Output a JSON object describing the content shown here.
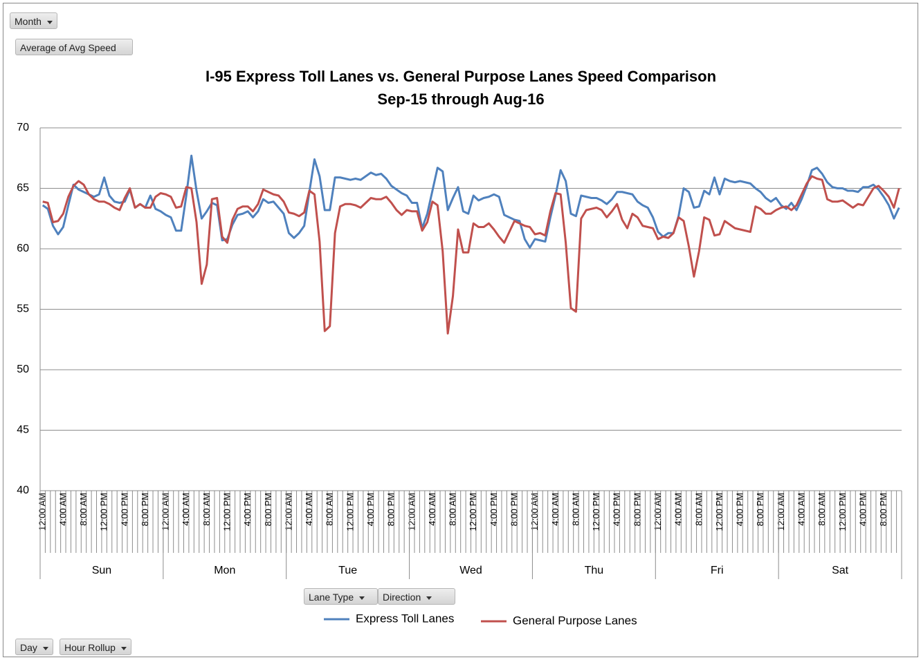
{
  "chart_data": {
    "type": "line",
    "title": "I-95 Express Toll Lanes vs. General Purpose Lanes Speed Comparison",
    "subtitle": "Sep-15 through Aug-16",
    "field_buttons": {
      "report_filter": "Month",
      "values": "Average of Avg Speed",
      "legend_fields": [
        "Lane Type",
        "Direction"
      ],
      "axis_fields": [
        "Day",
        "Hour Rollup"
      ]
    },
    "day_groups": [
      "Sun",
      "Mon",
      "Tue",
      "Wed",
      "Thu",
      "Fri",
      "Sat"
    ],
    "categories": [
      "12:00 AM",
      null,
      null,
      null,
      "4:00 AM",
      null,
      null,
      null,
      "8:00 AM",
      null,
      null,
      null,
      "12:00 PM",
      null,
      null,
      null,
      "4:00 PM",
      null,
      null,
      null,
      "8:00 PM",
      null,
      null,
      null,
      "12:00 AM",
      null,
      null,
      null,
      "4:00 AM",
      null,
      null,
      null,
      "8:00 AM",
      null,
      null,
      null,
      "12:00 PM",
      null,
      null,
      null,
      "4:00 PM",
      null,
      null,
      null,
      "8:00 PM",
      null,
      null,
      null,
      "12:00 AM",
      null,
      null,
      null,
      "4:00 AM",
      null,
      null,
      null,
      "8:00 AM",
      null,
      null,
      null,
      "12:00 PM",
      null,
      null,
      null,
      "4:00 PM",
      null,
      null,
      null,
      "8:00 PM",
      null,
      null,
      null,
      "12:00 AM",
      null,
      null,
      null,
      "4:00 AM",
      null,
      null,
      null,
      "8:00 AM",
      null,
      null,
      null,
      "12:00 PM",
      null,
      null,
      null,
      "4:00 PM",
      null,
      null,
      null,
      "8:00 PM",
      null,
      null,
      null,
      "12:00 AM",
      null,
      null,
      null,
      "4:00 AM",
      null,
      null,
      null,
      "8:00 AM",
      null,
      null,
      null,
      "12:00 PM",
      null,
      null,
      null,
      "4:00 PM",
      null,
      null,
      null,
      "8:00 PM",
      null,
      null,
      null,
      "12:00 AM",
      null,
      null,
      null,
      "4:00 AM",
      null,
      null,
      null,
      "8:00 AM",
      null,
      null,
      null,
      "12:00 PM",
      null,
      null,
      null,
      "4:00 PM",
      null,
      null,
      null,
      "8:00 PM",
      null,
      null,
      null,
      "12:00 AM",
      null,
      null,
      null,
      "4:00 AM",
      null,
      null,
      null,
      "8:00 AM",
      null,
      null,
      null,
      "12:00 PM",
      null,
      null,
      null,
      "4:00 PM",
      null,
      null,
      null,
      "8:00 PM",
      null,
      null,
      null
    ],
    "series": [
      {
        "name": "Express Toll Lanes",
        "color": "#4f81bd",
        "values": [
          63.6,
          63.3,
          61.9,
          61.2,
          61.8,
          63.6,
          65.3,
          64.9,
          64.7,
          64.5,
          64.3,
          64.5,
          65.9,
          64.4,
          63.9,
          63.8,
          63.9,
          64.9,
          63.4,
          63.7,
          63.4,
          64.4,
          63.3,
          63.1,
          62.8,
          62.6,
          61.5,
          61.5,
          64.4,
          67.7,
          64.8,
          62.5,
          63.1,
          63.8,
          63.6,
          60.7,
          60.8,
          62.0,
          62.8,
          62.9,
          63.1,
          62.6,
          63.1,
          64.1,
          63.8,
          63.9,
          63.4,
          62.9,
          61.3,
          60.9,
          61.3,
          61.9,
          64.7,
          67.4,
          66.0,
          63.2,
          63.2,
          65.9,
          65.9,
          65.8,
          65.7,
          65.8,
          65.7,
          66.0,
          66.3,
          66.1,
          66.2,
          65.8,
          65.2,
          64.9,
          64.6,
          64.4,
          63.8,
          63.8,
          61.7,
          62.9,
          64.8,
          66.7,
          66.4,
          63.2,
          64.2,
          65.1,
          63.1,
          62.9,
          64.4,
          64.0,
          64.2,
          64.3,
          64.5,
          64.3,
          62.8,
          62.6,
          62.4,
          62.3,
          60.8,
          60.1,
          60.8,
          60.7,
          60.6,
          62.6,
          64.4,
          66.5,
          65.6,
          62.9,
          62.7,
          64.4,
          64.3,
          64.2,
          64.2,
          64.0,
          63.7,
          64.1,
          64.7,
          64.7,
          64.6,
          64.5,
          63.9,
          63.6,
          63.4,
          62.6,
          61.4,
          61.0,
          61.3,
          61.3,
          62.7,
          65.0,
          64.7,
          63.4,
          63.5,
          64.8,
          64.5,
          65.9,
          64.5,
          65.8,
          65.6,
          65.5,
          65.6,
          65.5,
          65.4,
          65.0,
          64.7,
          64.2,
          63.9,
          64.2,
          63.6,
          63.3,
          63.8,
          63.2,
          64.1,
          65.2,
          66.5,
          66.7,
          66.2,
          65.5,
          65.1,
          65.0,
          65.0,
          64.8,
          64.8,
          64.7,
          65.1,
          65.1,
          65.3,
          64.9,
          64.3,
          63.6,
          62.5,
          63.4
        ]
      },
      {
        "name": "General Purpose Lanes",
        "color": "#c0504d",
        "values": [
          63.9,
          63.8,
          62.2,
          62.3,
          62.9,
          64.3,
          65.2,
          65.6,
          65.3,
          64.5,
          64.1,
          63.9,
          63.9,
          63.7,
          63.4,
          63.2,
          64.2,
          65.0,
          63.4,
          63.7,
          63.4,
          63.4,
          64.3,
          64.6,
          64.5,
          64.3,
          63.4,
          63.5,
          65.1,
          65.0,
          62.2,
          57.1,
          58.7,
          64.1,
          64.2,
          61.0,
          60.5,
          62.4,
          63.3,
          63.5,
          63.5,
          63.1,
          63.7,
          64.9,
          64.7,
          64.5,
          64.4,
          63.9,
          63.0,
          62.9,
          62.7,
          63.0,
          64.8,
          64.5,
          60.6,
          53.2,
          53.6,
          61.3,
          63.5,
          63.7,
          63.7,
          63.6,
          63.4,
          63.8,
          64.2,
          64.1,
          64.1,
          64.3,
          63.8,
          63.2,
          62.8,
          63.2,
          63.1,
          63.1,
          61.5,
          62.2,
          63.9,
          63.6,
          59.8,
          53.0,
          56.1,
          61.6,
          59.7,
          59.7,
          62.1,
          61.8,
          61.8,
          62.1,
          61.6,
          61.0,
          60.5,
          61.4,
          62.3,
          62.1,
          61.9,
          61.8,
          61.2,
          61.3,
          61.1,
          63.1,
          64.6,
          64.5,
          60.5,
          55.1,
          54.8,
          62.5,
          63.2,
          63.3,
          63.4,
          63.2,
          62.6,
          63.1,
          63.7,
          62.4,
          61.7,
          62.9,
          62.6,
          61.9,
          61.8,
          61.7,
          60.8,
          61.0,
          60.9,
          61.3,
          62.6,
          62.3,
          60.2,
          57.7,
          59.8,
          62.6,
          62.4,
          61.1,
          61.2,
          62.3,
          62.0,
          61.7,
          61.6,
          61.5,
          61.4,
          63.5,
          63.3,
          62.9,
          62.9,
          63.2,
          63.4,
          63.5,
          63.2,
          63.6,
          64.5,
          65.4,
          66.0,
          65.8,
          65.7,
          64.1,
          63.9,
          63.9,
          64.0,
          63.7,
          63.4,
          63.7,
          63.6,
          64.3,
          65.0,
          65.2,
          64.8,
          64.3,
          63.4,
          65.0
        ]
      }
    ],
    "ylim": [
      40,
      70
    ],
    "yticks": [
      40,
      45,
      50,
      55,
      60,
      65,
      70
    ],
    "grid": true
  }
}
